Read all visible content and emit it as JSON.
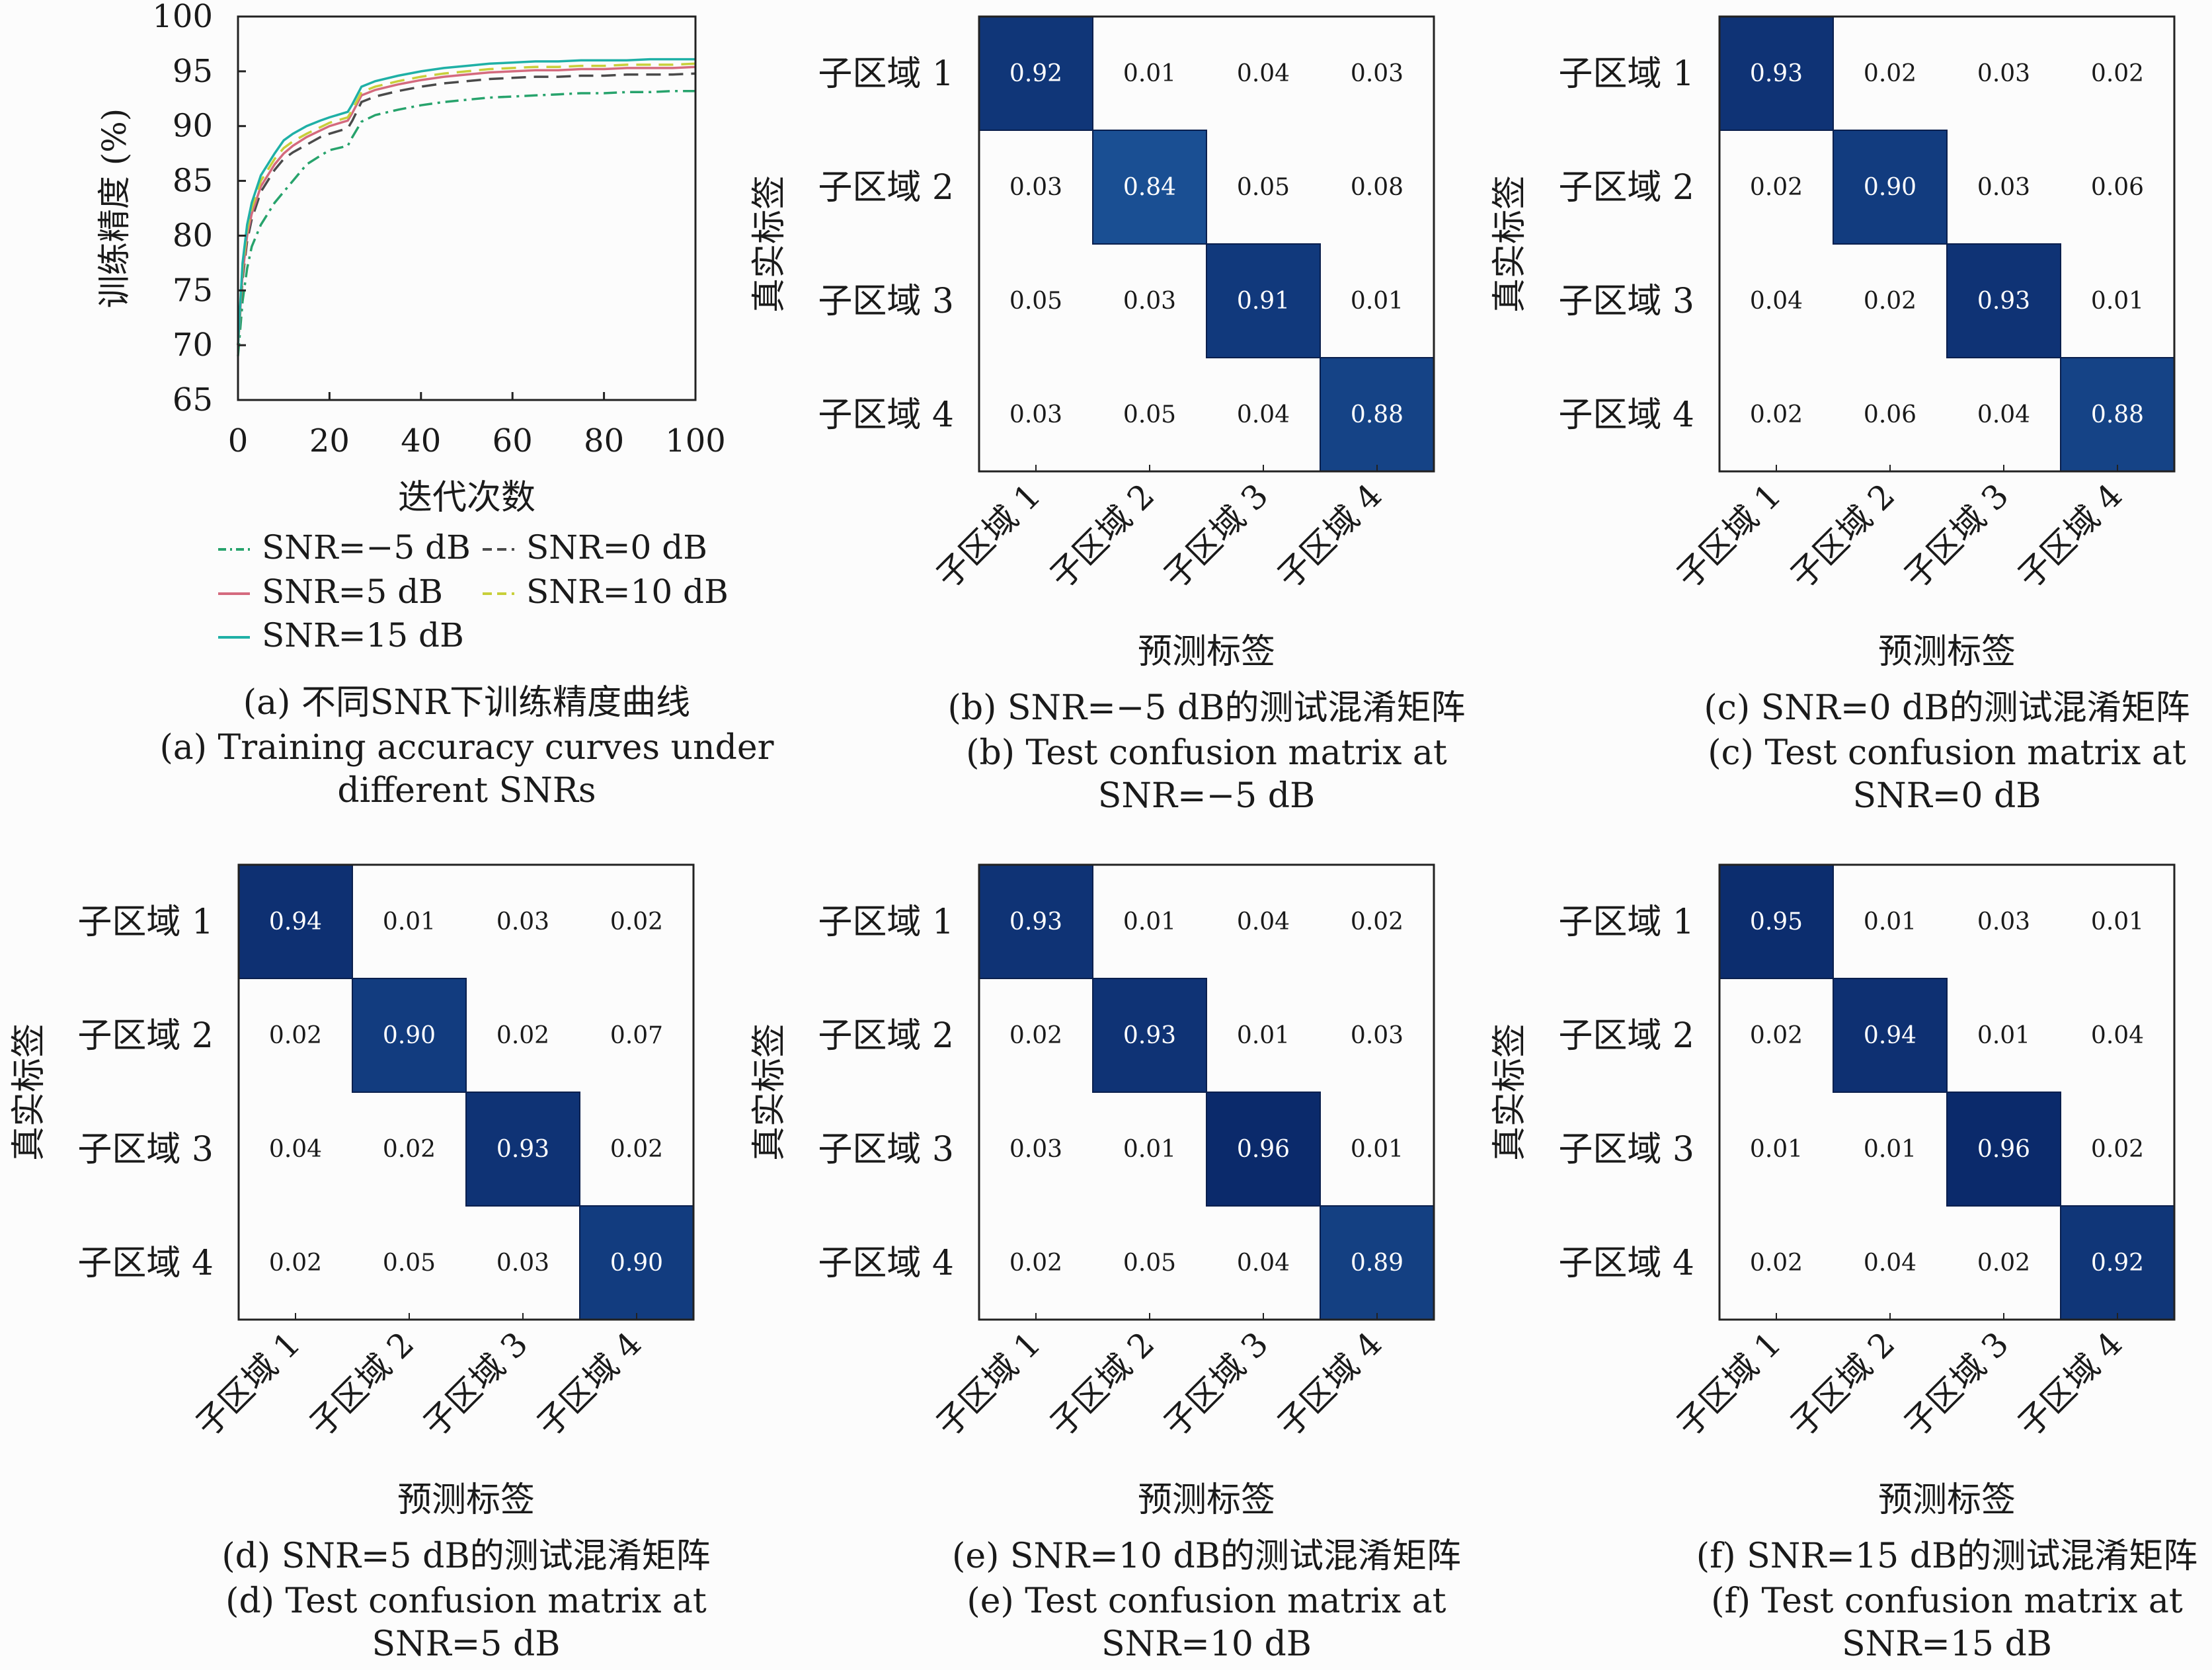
{
  "figure": {
    "background": "#fcfcfc",
    "cell_dark": "#0b2a6b",
    "cell_mid": "#1a4f93"
  },
  "chart_data": [
    {
      "id": "a",
      "type": "line",
      "title": "",
      "xlabel": "迭代次数",
      "ylabel": "训练精度 (%)",
      "xlim": [
        0,
        100
      ],
      "ylim": [
        65,
        100
      ],
      "xticks": [
        0,
        20,
        40,
        60,
        80,
        100
      ],
      "yticks": [
        65,
        70,
        75,
        80,
        85,
        90,
        95,
        100
      ],
      "grid": false,
      "legend_position": "below",
      "x": [
        0,
        1,
        2,
        3,
        5,
        8,
        10,
        12,
        15,
        18,
        20,
        24,
        25,
        27,
        30,
        35,
        40,
        45,
        50,
        55,
        60,
        65,
        70,
        75,
        80,
        85,
        90,
        95,
        100
      ],
      "series": [
        {
          "name": "SNR=−5 dB",
          "color": "#27a36c",
          "dash": "dashdot",
          "values": [
            69,
            74,
            77,
            79,
            81,
            83,
            84,
            85,
            86.5,
            87.3,
            87.8,
            88.2,
            89,
            90.4,
            91,
            91.5,
            91.9,
            92.2,
            92.4,
            92.6,
            92.7,
            92.8,
            92.9,
            93,
            93,
            93.1,
            93.1,
            93.2,
            93.2
          ]
        },
        {
          "name": "SNR=0 dB",
          "color": "#4a4a4a",
          "dash": "dash",
          "values": [
            70,
            76,
            79.5,
            81.5,
            84,
            86,
            87,
            87.6,
            88.3,
            89,
            89.3,
            89.8,
            90.5,
            92.2,
            92.7,
            93.2,
            93.6,
            93.9,
            94.1,
            94.3,
            94.4,
            94.5,
            94.5,
            94.6,
            94.6,
            94.7,
            94.7,
            94.7,
            94.8
          ]
        },
        {
          "name": "SNR=5 dB",
          "color": "#d46a7e",
          "dash": "solid",
          "values": [
            70,
            76.5,
            80,
            82,
            84.5,
            86.5,
            87.5,
            88.2,
            89,
            89.6,
            90,
            90.5,
            91.2,
            92.8,
            93.3,
            93.8,
            94.2,
            94.5,
            94.7,
            94.9,
            95,
            95.1,
            95.1,
            95.2,
            95.2,
            95.3,
            95.3,
            95.3,
            95.4
          ]
        },
        {
          "name": "SNR=10 dB",
          "color": "#c8cf3a",
          "dash": "dash",
          "values": [
            70,
            77,
            80.5,
            82.5,
            85,
            87,
            88,
            88.6,
            89.3,
            89.9,
            90.3,
            90.8,
            91.5,
            93.1,
            93.6,
            94.1,
            94.5,
            94.8,
            95,
            95.2,
            95.3,
            95.4,
            95.4,
            95.5,
            95.5,
            95.6,
            95.6,
            95.6,
            95.7
          ]
        },
        {
          "name": "SNR=15 dB",
          "color": "#1fb0a6",
          "dash": "solid",
          "values": [
            70,
            77.5,
            81,
            83,
            85.5,
            87.5,
            88.7,
            89.3,
            90,
            90.5,
            90.8,
            91.3,
            92,
            93.6,
            94.1,
            94.6,
            95,
            95.3,
            95.5,
            95.7,
            95.8,
            95.9,
            95.9,
            96,
            96,
            96,
            96.1,
            96.1,
            96.1
          ]
        }
      ],
      "caption_cn": "(a) 不同SNR下训练精度曲线",
      "caption_en_1": "(a) Training accuracy curves under",
      "caption_en_2": "different SNRs"
    },
    {
      "id": "b",
      "type": "heatmap",
      "xlabel": "预测标签",
      "ylabel": "真实标签",
      "categories": [
        "子区域 1",
        "子区域 2",
        "子区域 3",
        "子区域 4"
      ],
      "values": [
        [
          "0.92",
          "0.01",
          "0.04",
          "0.03"
        ],
        [
          "0.03",
          "0.84",
          "0.05",
          "0.08"
        ],
        [
          "0.05",
          "0.03",
          "0.91",
          "0.01"
        ],
        [
          "0.03",
          "0.05",
          "0.04",
          "0.88"
        ]
      ],
      "caption_cn": "(b) SNR=−5 dB的测试混淆矩阵",
      "caption_en_1": "(b) Test confusion matrix at",
      "caption_en_2": "SNR=−5 dB"
    },
    {
      "id": "c",
      "type": "heatmap",
      "xlabel": "预测标签",
      "ylabel": "真实标签",
      "categories": [
        "子区域 1",
        "子区域 2",
        "子区域 3",
        "子区域 4"
      ],
      "values": [
        [
          "0.93",
          "0.02",
          "0.03",
          "0.02"
        ],
        [
          "0.02",
          "0.90",
          "0.03",
          "0.06"
        ],
        [
          "0.04",
          "0.02",
          "0.93",
          "0.01"
        ],
        [
          "0.02",
          "0.06",
          "0.04",
          "0.88"
        ]
      ],
      "caption_cn": "(c) SNR=0 dB的测试混淆矩阵",
      "caption_en_1": "(c) Test confusion matrix at",
      "caption_en_2": "SNR=0 dB"
    },
    {
      "id": "d",
      "type": "heatmap",
      "xlabel": "预测标签",
      "ylabel": "真实标签",
      "categories": [
        "子区域 1",
        "子区域 2",
        "子区域 3",
        "子区域 4"
      ],
      "values": [
        [
          "0.94",
          "0.01",
          "0.03",
          "0.02"
        ],
        [
          "0.02",
          "0.90",
          "0.02",
          "0.07"
        ],
        [
          "0.04",
          "0.02",
          "0.93",
          "0.02"
        ],
        [
          "0.02",
          "0.05",
          "0.03",
          "0.90"
        ]
      ],
      "caption_cn": "(d) SNR=5 dB的测试混淆矩阵",
      "caption_en_1": "(d) Test confusion matrix at",
      "caption_en_2": "SNR=5 dB"
    },
    {
      "id": "e",
      "type": "heatmap",
      "xlabel": "预测标签",
      "ylabel": "真实标签",
      "categories": [
        "子区域 1",
        "子区域 2",
        "子区域 3",
        "子区域 4"
      ],
      "values": [
        [
          "0.93",
          "0.01",
          "0.04",
          "0.02"
        ],
        [
          "0.02",
          "0.93",
          "0.01",
          "0.03"
        ],
        [
          "0.03",
          "0.01",
          "0.96",
          "0.01"
        ],
        [
          "0.02",
          "0.05",
          "0.04",
          "0.89"
        ]
      ],
      "caption_cn": "(e) SNR=10 dB的测试混淆矩阵",
      "caption_en_1": "(e) Test confusion matrix at",
      "caption_en_2": "SNR=10 dB"
    },
    {
      "id": "f",
      "type": "heatmap",
      "xlabel": "预测标签",
      "ylabel": "真实标签",
      "categories": [
        "子区域 1",
        "子区域 2",
        "子区域 3",
        "子区域 4"
      ],
      "values": [
        [
          "0.95",
          "0.01",
          "0.03",
          "0.01"
        ],
        [
          "0.02",
          "0.94",
          "0.01",
          "0.04"
        ],
        [
          "0.01",
          "0.01",
          "0.96",
          "0.02"
        ],
        [
          "0.02",
          "0.04",
          "0.02",
          "0.92"
        ]
      ],
      "caption_cn": "(f) SNR=15 dB的测试混淆矩阵",
      "caption_en_1": "(f) Test confusion matrix at",
      "caption_en_2": "SNR=15 dB"
    }
  ]
}
